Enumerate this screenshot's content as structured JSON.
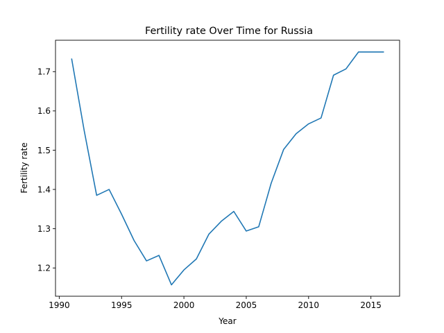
{
  "chart_data": {
    "type": "line",
    "title": "Fertility rate Over Time for Russia",
    "xlabel": "Year",
    "ylabel": "Fertility rate",
    "xlim": [
      1989.7,
      2017.3
    ],
    "ylim": [
      1.128,
      1.78
    ],
    "xticks": [
      1990,
      1995,
      2000,
      2005,
      2010,
      2015
    ],
    "yticks": [
      1.2,
      1.3,
      1.4,
      1.5,
      1.6,
      1.7
    ],
    "ytick_labels": [
      "1.2",
      "1.3",
      "1.4",
      "1.5",
      "1.6",
      "1.7"
    ],
    "grid": false,
    "series": [
      {
        "color": "#1f77b4",
        "x": [
          1991,
          1992,
          1993,
          1994,
          1995,
          1996,
          1997,
          1998,
          1999,
          2000,
          2001,
          2002,
          2003,
          2004,
          2005,
          2006,
          2007,
          2008,
          2009,
          2010,
          2011,
          2012,
          2013,
          2014,
          2015,
          2016
        ],
        "y": [
          1.732,
          1.55,
          1.385,
          1.4,
          1.337,
          1.27,
          1.218,
          1.232,
          1.157,
          1.195,
          1.223,
          1.286,
          1.319,
          1.344,
          1.294,
          1.305,
          1.416,
          1.502,
          1.542,
          1.567,
          1.582,
          1.691,
          1.707,
          1.75,
          1.75,
          1.75
        ]
      }
    ]
  }
}
